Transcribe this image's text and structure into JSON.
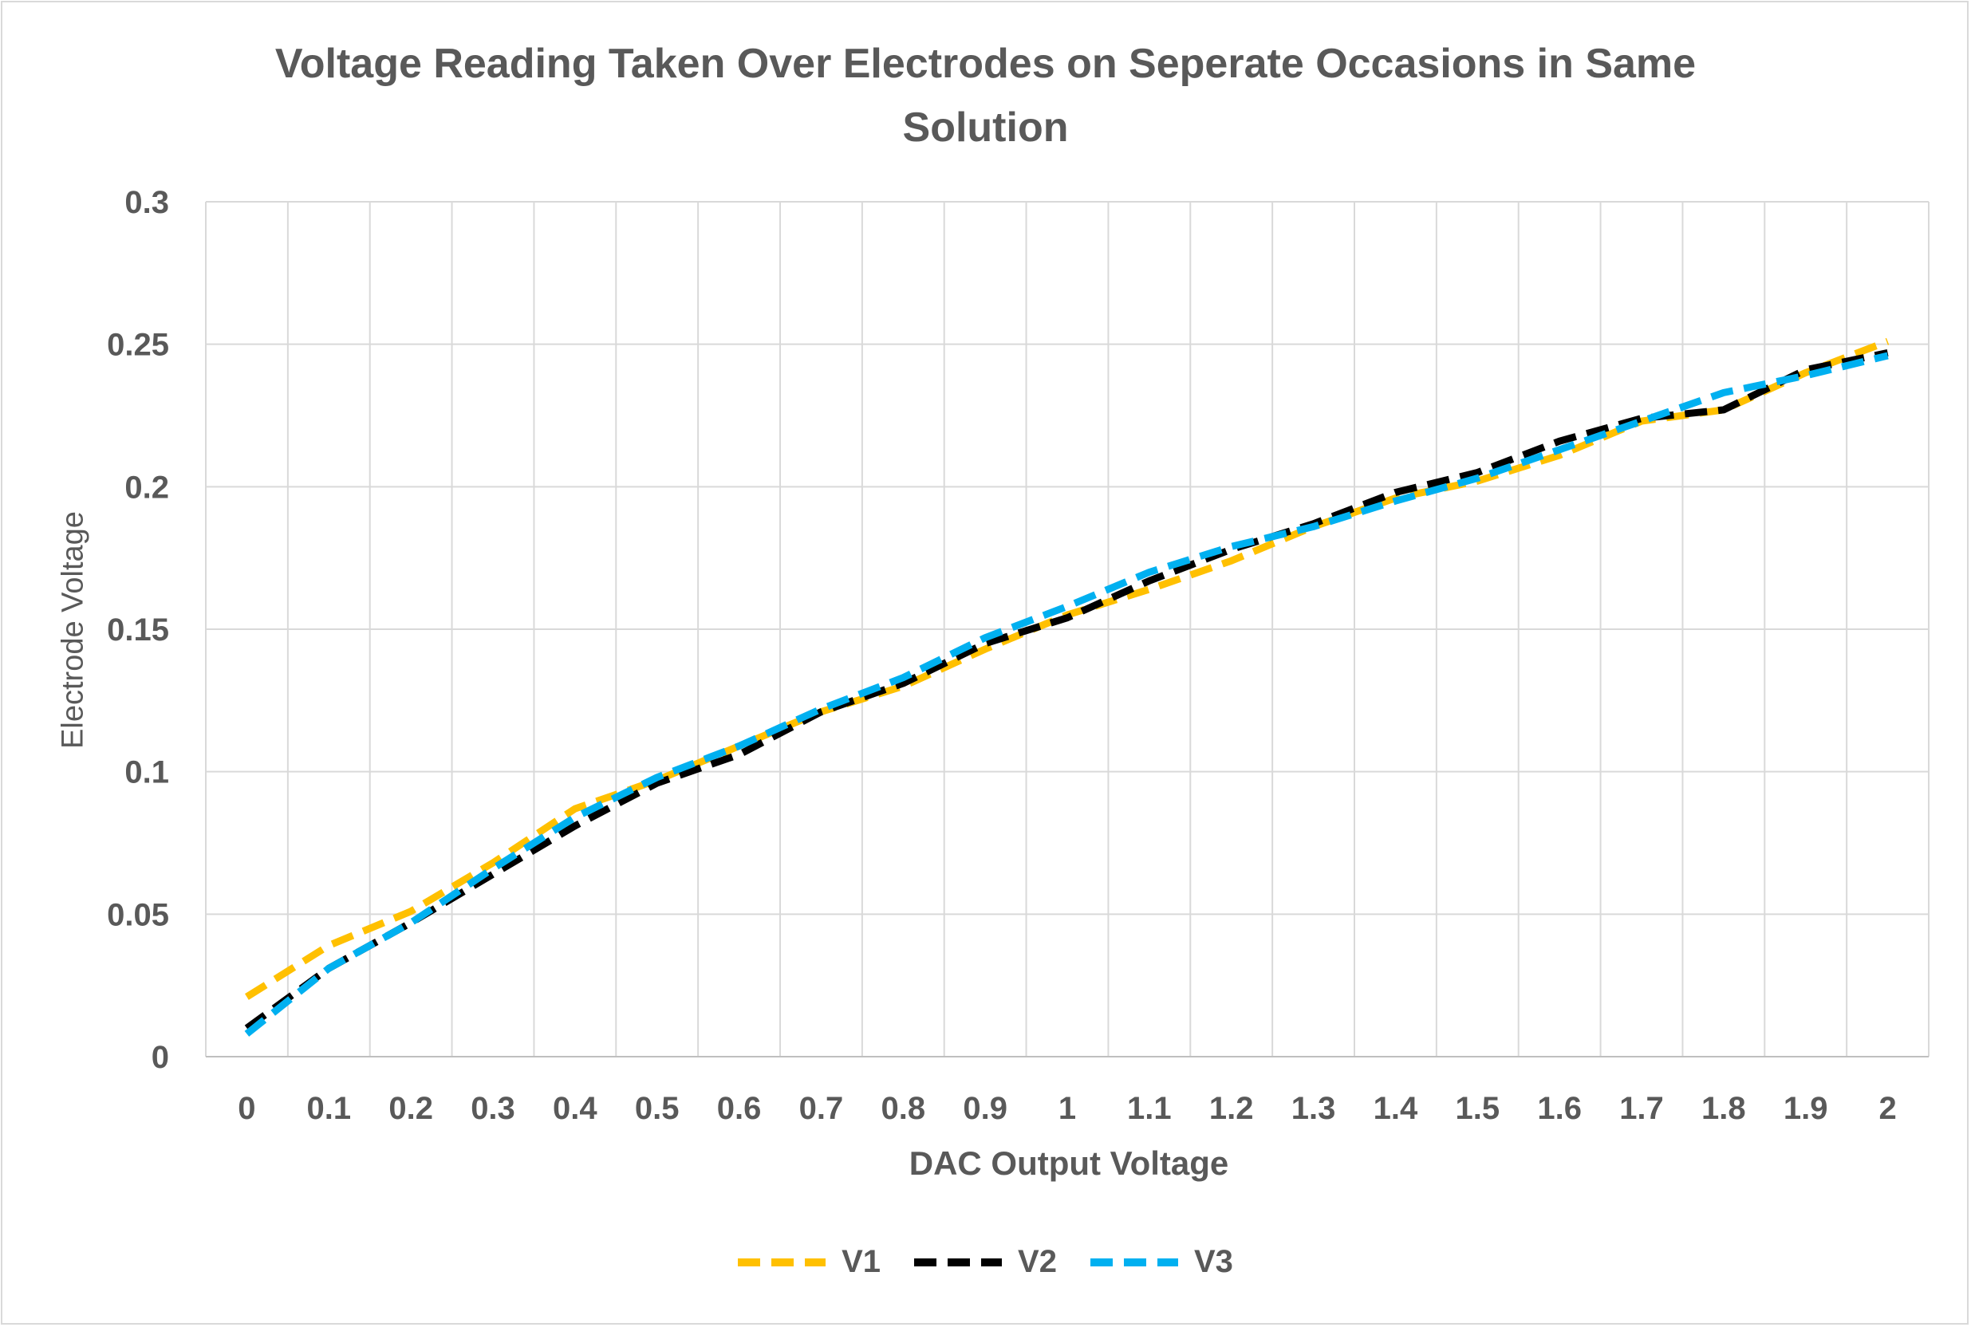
{
  "chart_data": {
    "type": "line",
    "title": "Voltage Reading Taken Over Electrodes on Seperate Occasions in Same Solution",
    "xlabel": "DAC Output Voltage",
    "ylabel": "Electrode Voltage",
    "x": [
      0,
      0.1,
      0.2,
      0.3,
      0.4,
      0.5,
      0.6,
      0.7,
      0.8,
      0.9,
      1,
      1.1,
      1.2,
      1.3,
      1.4,
      1.5,
      1.6,
      1.7,
      1.8,
      1.9,
      2
    ],
    "x_tick_labels": [
      "0",
      "0.1",
      "0.2",
      "0.3",
      "0.4",
      "0.5",
      "0.6",
      "0.7",
      "0.8",
      "0.9",
      "1",
      "1.1",
      "1.2",
      "1.3",
      "1.4",
      "1.5",
      "1.6",
      "1.7",
      "1.8",
      "1.9",
      "2"
    ],
    "y_tick_labels": [
      "0",
      "0.05",
      "0.1",
      "0.15",
      "0.2",
      "0.25",
      "0.3"
    ],
    "ylim": [
      0,
      0.3
    ],
    "grid": true,
    "legend_position": "bottom",
    "series": [
      {
        "name": "V1",
        "color": "#ffc000",
        "dash": "dashed",
        "values": [
          0.021,
          0.039,
          0.051,
          0.068,
          0.087,
          0.097,
          0.109,
          0.121,
          0.13,
          0.143,
          0.155,
          0.164,
          0.174,
          0.186,
          0.196,
          0.202,
          0.211,
          0.223,
          0.227,
          0.24,
          0.251
        ]
      },
      {
        "name": "V2",
        "color": "#000000",
        "dash": "dashed",
        "values": [
          0.01,
          0.031,
          0.047,
          0.064,
          0.081,
          0.096,
          0.106,
          0.121,
          0.131,
          0.145,
          0.154,
          0.167,
          0.178,
          0.187,
          0.198,
          0.205,
          0.216,
          0.224,
          0.227,
          0.241,
          0.247
        ]
      },
      {
        "name": "V3",
        "color": "#00b0f0",
        "dash": "dashed",
        "values": [
          0.008,
          0.031,
          0.047,
          0.066,
          0.084,
          0.098,
          0.109,
          0.122,
          0.133,
          0.147,
          0.158,
          0.17,
          0.179,
          0.186,
          0.195,
          0.203,
          0.213,
          0.223,
          0.233,
          0.239,
          0.246
        ]
      }
    ]
  }
}
